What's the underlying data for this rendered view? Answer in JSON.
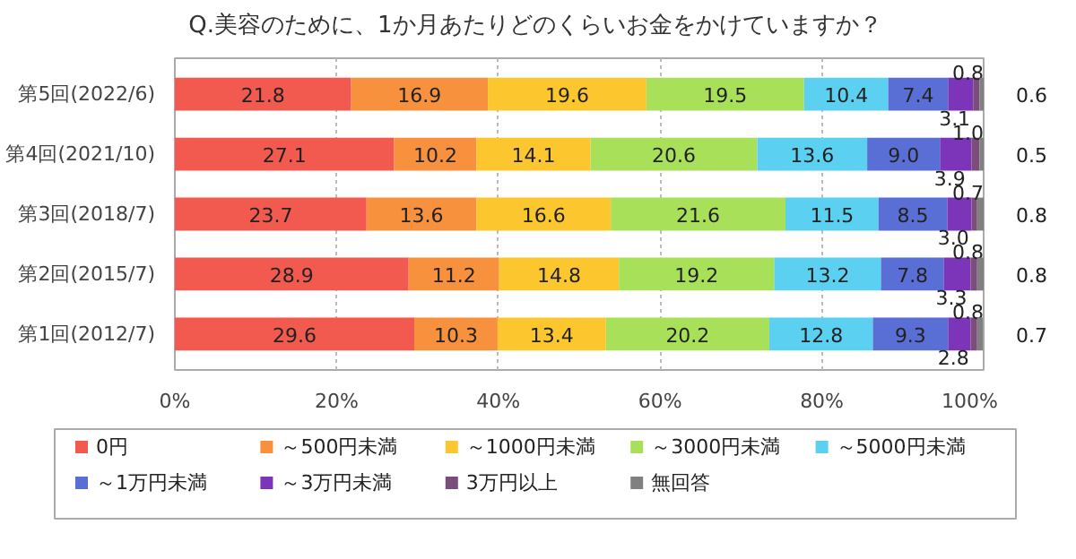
{
  "chart_data": {
    "type": "bar",
    "orientation": "horizontal",
    "stacked": true,
    "title": "Q.美容のために、1か月あたりどのくらいお金をかけていますか？",
    "categories": [
      "第5回(2022/6)",
      "第4回(2021/10)",
      "第3回(2018/7)",
      "第2回(2015/7)",
      "第1回(2012/7)"
    ],
    "series": [
      {
        "name": "0円",
        "color": "#f25a4f",
        "values": [
          21.8,
          27.1,
          23.7,
          28.9,
          29.6
        ],
        "value_labels": [
          "21.8",
          "27.1",
          "23.7",
          "28.9",
          "29.6"
        ]
      },
      {
        "name": "～500円未満",
        "color": "#f7913d",
        "values": [
          16.9,
          10.2,
          13.6,
          11.2,
          10.3
        ],
        "value_labels": [
          "16.9",
          "10.2",
          "13.6",
          "11.2",
          "10.3"
        ]
      },
      {
        "name": "～1000円未満",
        "color": "#fcc72e",
        "values": [
          19.6,
          14.1,
          16.6,
          14.8,
          13.4
        ],
        "value_labels": [
          "19.6",
          "14.1",
          "16.6",
          "14.8",
          "13.4"
        ]
      },
      {
        "name": "～3000円未満",
        "color": "#a8e05a",
        "values": [
          19.5,
          20.6,
          21.6,
          19.2,
          20.2
        ],
        "value_labels": [
          "19.5",
          "20.6",
          "21.6",
          "19.2",
          "20.2"
        ]
      },
      {
        "name": "～5000円未満",
        "color": "#5bd0f0",
        "values": [
          10.4,
          13.6,
          11.5,
          13.2,
          12.8
        ],
        "value_labels": [
          "10.4",
          "13.6",
          "11.5",
          "13.2",
          "12.8"
        ]
      },
      {
        "name": "～1万円未満",
        "color": "#5a6fd6",
        "values": [
          7.4,
          9.0,
          8.5,
          7.8,
          9.3
        ],
        "value_labels": [
          "7.4",
          "9.0",
          "8.5",
          "7.8",
          "9.3"
        ]
      },
      {
        "name": "～3万円未満",
        "color": "#7c35b8",
        "values": [
          3.1,
          3.9,
          3.0,
          3.3,
          2.8
        ],
        "value_labels": [
          "3.1",
          "3.9",
          "3.0",
          "3.3",
          "2.8"
        ]
      },
      {
        "name": "3万円以上",
        "color": "#7b4d7a",
        "values": [
          0.8,
          1.0,
          0.7,
          0.8,
          0.8
        ],
        "value_labels": [
          "0.8",
          "1.0",
          "0.7",
          "0.8",
          "0.8"
        ]
      },
      {
        "name": "無回答",
        "color": "#808080",
        "values": [
          0.6,
          0.5,
          0.8,
          0.8,
          0.7
        ],
        "value_labels": [
          "0.6",
          "0.5",
          "0.8",
          "0.8",
          "0.7"
        ]
      }
    ],
    "xlim": [
      0,
      100
    ],
    "xticks": [
      {
        "value": 0,
        "label": "0%"
      },
      {
        "value": 20,
        "label": "20%"
      },
      {
        "value": 40,
        "label": "40%"
      },
      {
        "value": 60,
        "label": "60%"
      },
      {
        "value": 80,
        "label": "80%"
      },
      {
        "value": 100,
        "label": "100%"
      }
    ],
    "grid": "x",
    "legend": "bottom"
  }
}
